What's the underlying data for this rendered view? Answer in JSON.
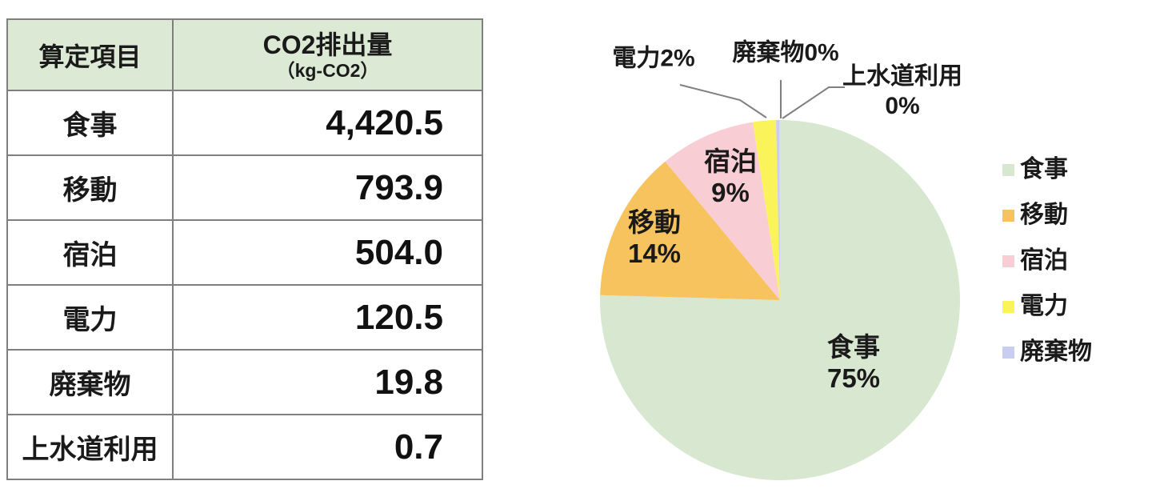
{
  "chart_data": [
    {
      "type": "table",
      "columns": [
        "算定項目",
        "CO2排出量（kg-CO2）"
      ],
      "header": {
        "item_label": "算定項目",
        "value_label_line1": "CO2排出量",
        "value_label_line2": "（kg-CO2）"
      },
      "rows": [
        {
          "label": "食事",
          "value": "4,420.5"
        },
        {
          "label": "移動",
          "value": "793.9"
        },
        {
          "label": "宿泊",
          "value": "504.0"
        },
        {
          "label": "電力",
          "value": "120.5"
        },
        {
          "label": "廃棄物",
          "value": "19.8"
        },
        {
          "label": "上水道利用",
          "value": "0.7"
        }
      ],
      "header_bg": "#DCEAD5",
      "border_color": "#7F7F7F"
    },
    {
      "type": "pie",
      "categories": [
        "食事",
        "移動",
        "宿泊",
        "電力",
        "廃棄物",
        "上水道利用"
      ],
      "values": [
        4420.5,
        793.9,
        504.0,
        120.5,
        19.8,
        0.7
      ],
      "percents": [
        75,
        14,
        9,
        2,
        0,
        0
      ],
      "colors": [
        "#D8E7D0",
        "#F7C35F",
        "#F8CDD3",
        "#FBF35A",
        "#C9CDF1",
        "#FFFFFF"
      ],
      "start_angle_deg": 0,
      "direction": "clockwise",
      "slice_labels": {
        "shokuji": {
          "name": "食事",
          "pct": "75%"
        },
        "idou": {
          "name": "移動",
          "pct": "14%"
        },
        "shukuhaku": {
          "name": "宿泊",
          "pct": "9%"
        },
        "denryoku": {
          "name": "電力",
          "pct": "2%"
        },
        "haikibutsu": {
          "name": "廃棄物",
          "pct": "0%"
        },
        "josuido": {
          "name": "上水道利用",
          "pct": "0%"
        }
      },
      "legend": [
        "食事",
        "移動",
        "宿泊",
        "電力",
        "廃棄物"
      ],
      "legend_position": "right",
      "leader_line_color": "#7F7F7F",
      "text_color": "#1A1A1A"
    }
  ]
}
